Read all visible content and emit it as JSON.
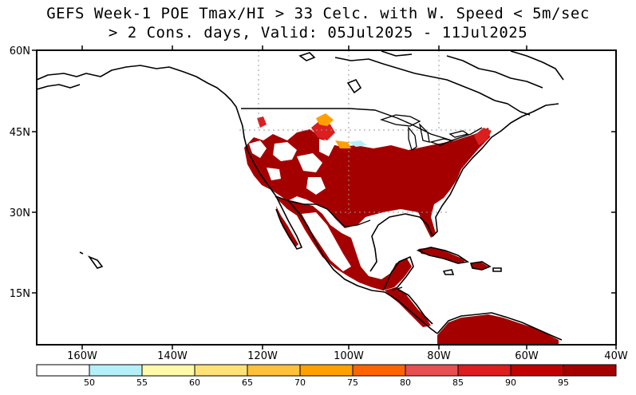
{
  "title": {
    "line1": "GEFS Week-1 POE Tmax/HI > 33 Celc. with W. Speed < 5m/sec",
    "line2": "> 2 Cons. days, Valid: 05Jul2025 - 11Jul2025"
  },
  "axes": {
    "lat_labels": [
      "60N",
      "45N",
      "30N",
      "15N"
    ],
    "lon_labels": [
      "160W",
      "140W",
      "120W",
      "100W",
      "80W",
      "60W",
      "40W"
    ]
  },
  "colorbar": {
    "labels": [
      "50",
      "55",
      "60",
      "65",
      "70",
      "75",
      "80",
      "85",
      "90",
      "95"
    ],
    "colors": [
      "#ffffff",
      "#b4f0fa",
      "#fffaaa",
      "#ffe178",
      "#ffc03c",
      "#ffa000",
      "#ff6400",
      "#e65050",
      "#dc1e1e",
      "#c00000",
      "#a50000"
    ]
  },
  "map_colors": {
    "land_high": "#a50000",
    "land_mid": "#c00000",
    "ocean": "#ffffff"
  }
}
